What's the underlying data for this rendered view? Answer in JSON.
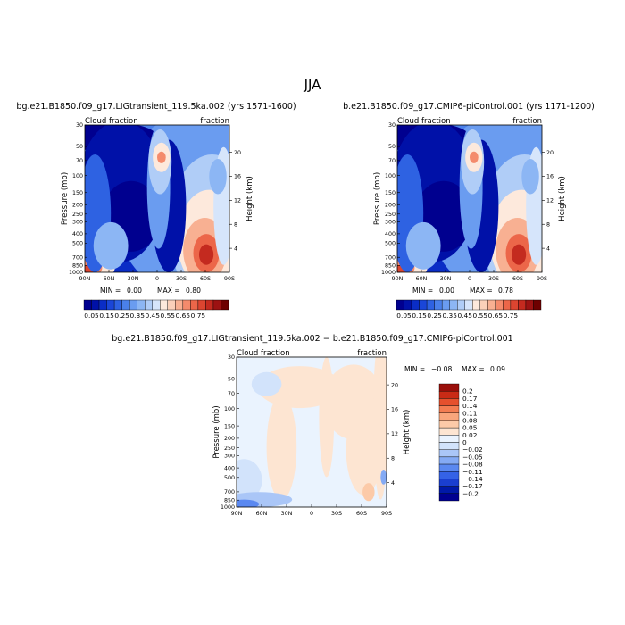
{
  "suptitle": "JJA",
  "colors": {
    "levels": [
      "#00008f",
      "#0011a8",
      "#0a2dc6",
      "#1a46d8",
      "#2e62e2",
      "#4a80ea",
      "#6a9cf0",
      "#8cb6f4",
      "#b0cdf7",
      "#d6e5fb",
      "#fde9dc",
      "#fbd0b9",
      "#f8b092",
      "#f48b6c",
      "#ec6649",
      "#dc4530",
      "#c42a1f",
      "#9c1212",
      "#6e0000"
    ],
    "diff": [
      "#000090",
      "#0019a8",
      "#1a3fd0",
      "#3562e6",
      "#5a88f0",
      "#84aaf4",
      "#aac6f7",
      "#d2e3fb",
      "#eaf3fe",
      "#fde5d2",
      "#fccaa8",
      "#f9a67c",
      "#f37d52",
      "#e5502d",
      "#c92b16",
      "#9a0f0b"
    ]
  },
  "chart_data": [
    {
      "type": "heatmap",
      "panel": "left",
      "title": "bg.e21.B1850.f09_g17.LIGtransient_119.5ka.002 (yrs 1571-1600)",
      "left_string": "Cloud fraction",
      "right_string": "fraction",
      "ylabel": "Pressure (mb)",
      "ylabel_right": "Height (km)",
      "x_ticks": [
        "90N",
        "60N",
        "30N",
        "0",
        "30S",
        "60S",
        "90S"
      ],
      "y_ticks": [
        "1000",
        "850",
        "700",
        "500",
        "400",
        "300",
        "250",
        "200",
        "150",
        "100",
        "70",
        "50",
        "30"
      ],
      "y_right_ticks": [
        "4",
        "8",
        "12",
        "16",
        "20"
      ],
      "min_label": "MIN =",
      "min_value": "0.00",
      "max_label": "MAX =",
      "max_value": "0.80",
      "scale": "log-pressure"
    },
    {
      "type": "heatmap",
      "panel": "right",
      "title": "b.e21.B1850.f09_g17.CMIP6-piControl.001 (yrs 1171-1200)",
      "left_string": "Cloud fraction",
      "right_string": "fraction",
      "ylabel": "Pressure (mb)",
      "ylabel_right": "Height (km)",
      "x_ticks": [
        "90N",
        "60N",
        "30N",
        "0",
        "30S",
        "60S",
        "90S"
      ],
      "y_ticks": [
        "1000",
        "850",
        "700",
        "500",
        "400",
        "300",
        "250",
        "200",
        "150",
        "100",
        "70",
        "50",
        "30"
      ],
      "y_right_ticks": [
        "4",
        "8",
        "12",
        "16",
        "20"
      ],
      "min_label": "MIN =",
      "min_value": "0.00",
      "max_label": "MAX =",
      "max_value": "0.78",
      "scale": "log-pressure"
    },
    {
      "type": "heatmap",
      "panel": "difference",
      "title": "bg.e21.B1850.f09_g17.LIGtransient_119.5ka.002 − b.e21.B1850.f09_g17.CMIP6-piControl.001",
      "left_string": "Cloud fraction",
      "right_string": "fraction",
      "ylabel": "Pressure (mb)",
      "ylabel_right": "Height (km)",
      "x_ticks": [
        "90N",
        "60N",
        "30N",
        "0",
        "30S",
        "60S",
        "90S"
      ],
      "y_ticks": [
        "1000",
        "850",
        "700",
        "500",
        "400",
        "300",
        "250",
        "200",
        "150",
        "100",
        "70",
        "50",
        "30"
      ],
      "y_right_ticks": [
        "4",
        "8",
        "12",
        "16",
        "20"
      ],
      "min_label": "MIN =",
      "min_value": "−0.08",
      "max_label": "MAX =",
      "max_value": "0.09",
      "scale": "log-pressure"
    }
  ],
  "colorbar_main": {
    "labels": [
      "0.05",
      "0.15",
      "0.25",
      "0.35",
      "0.45",
      "0.55",
      "0.65",
      "0.75"
    ]
  },
  "colorbar_diff": {
    "labels": [
      "0.2",
      "0.17",
      "0.14",
      "0.11",
      "0.08",
      "0.05",
      "0.02",
      "0",
      "−0.02",
      "−0.05",
      "−0.08",
      "−0.11",
      "−0.14",
      "−0.17",
      "−0.2"
    ]
  }
}
